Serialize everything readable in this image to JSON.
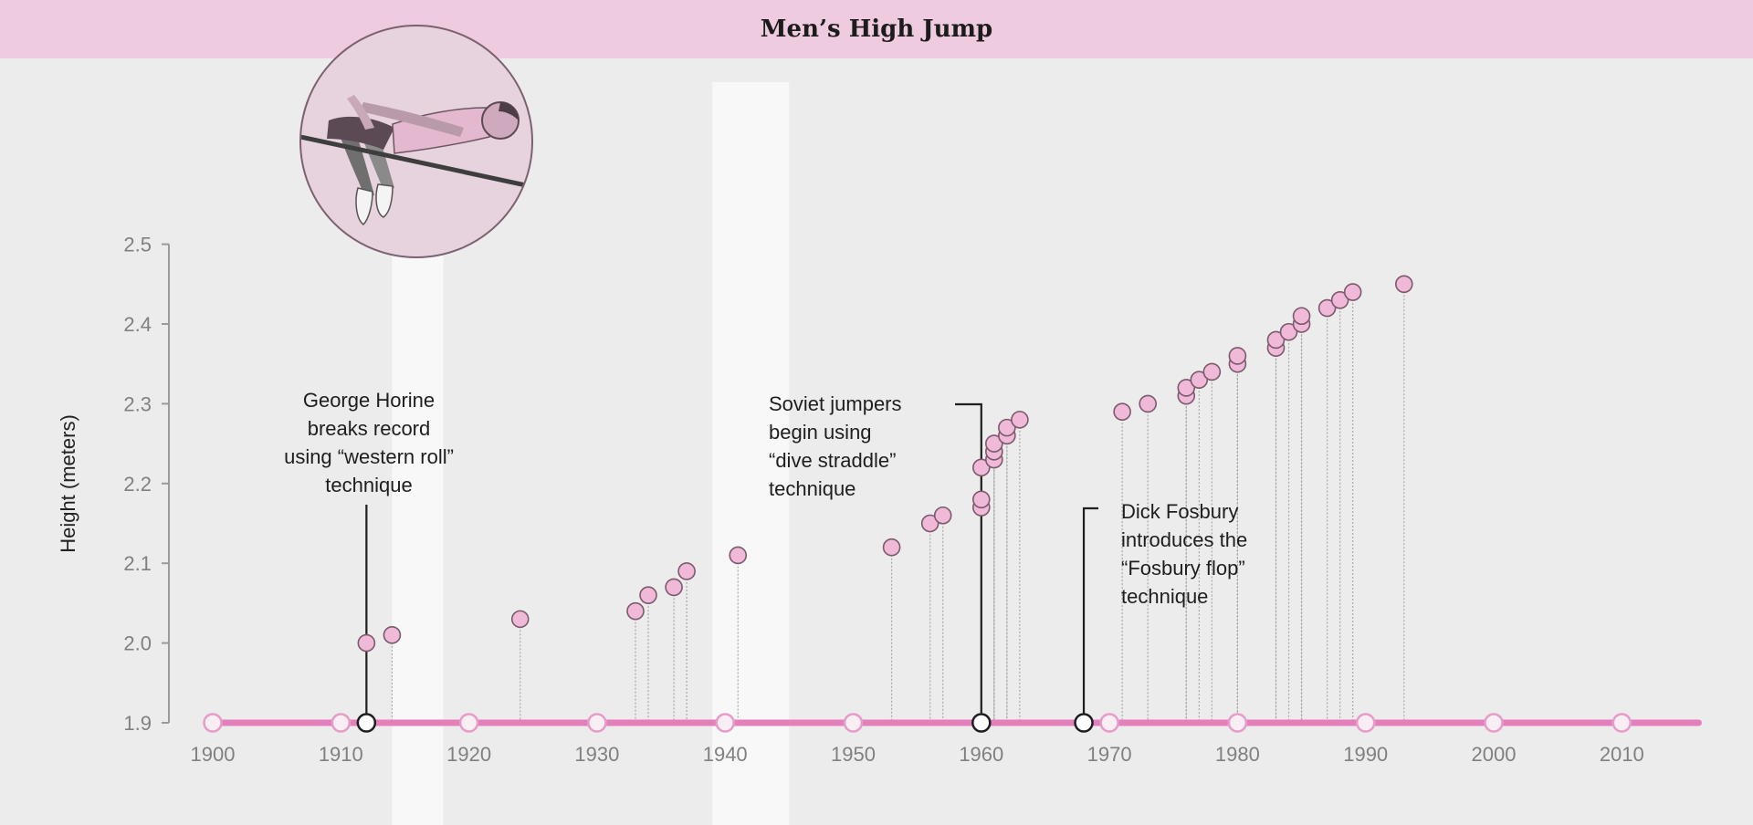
{
  "header": {
    "title": "Men’s High Jump"
  },
  "colors": {
    "background": "#ececec",
    "banner": "#efcbdf",
    "timeline": "#e47fbd",
    "point_fill": "#f0b9d8",
    "point_stroke": "#7a5a6c",
    "marker_fill": "#f9eef4",
    "marker_stroke": "#e79bc8",
    "highlight_band": "#f8f8f8",
    "annotation": "#1e1e1e"
  },
  "illustration": {
    "icon": "high-jumper-icon"
  },
  "chart_data": {
    "type": "scatter",
    "title": "",
    "xlabel": "",
    "ylabel": "Height (meters)",
    "xlim": [
      1900,
      2016
    ],
    "ylim": [
      1.9,
      2.5
    ],
    "x_ticks": [
      "1900",
      "1910",
      "1920",
      "1930",
      "1940",
      "1950",
      "1960",
      "1970",
      "1980",
      "1990",
      "2000",
      "2010"
    ],
    "y_ticks": [
      "1.9",
      "2.0",
      "2.1",
      "2.2",
      "2.3",
      "2.4",
      "2.5"
    ],
    "grid": false,
    "legend": "none",
    "highlight_bands": [
      [
        1914,
        1918
      ],
      [
        1939,
        1945
      ]
    ],
    "points": [
      {
        "x": 1912,
        "y": 2.0
      },
      {
        "x": 1914,
        "y": 2.01
      },
      {
        "x": 1924,
        "y": 2.03
      },
      {
        "x": 1933,
        "y": 2.04
      },
      {
        "x": 1934,
        "y": 2.06
      },
      {
        "x": 1936,
        "y": 2.07
      },
      {
        "x": 1937,
        "y": 2.09
      },
      {
        "x": 1941,
        "y": 2.11
      },
      {
        "x": 1953,
        "y": 2.12
      },
      {
        "x": 1956,
        "y": 2.15
      },
      {
        "x": 1957,
        "y": 2.16
      },
      {
        "x": 1960,
        "y": 2.17
      },
      {
        "x": 1960,
        "y": 2.18
      },
      {
        "x": 1960,
        "y": 2.22
      },
      {
        "x": 1961,
        "y": 2.23
      },
      {
        "x": 1961,
        "y": 2.24
      },
      {
        "x": 1961,
        "y": 2.25
      },
      {
        "x": 1962,
        "y": 2.26
      },
      {
        "x": 1962,
        "y": 2.27
      },
      {
        "x": 1963,
        "y": 2.28
      },
      {
        "x": 1971,
        "y": 2.29
      },
      {
        "x": 1973,
        "y": 2.3
      },
      {
        "x": 1976,
        "y": 2.31
      },
      {
        "x": 1976,
        "y": 2.32
      },
      {
        "x": 1977,
        "y": 2.33
      },
      {
        "x": 1978,
        "y": 2.34
      },
      {
        "x": 1980,
        "y": 2.35
      },
      {
        "x": 1980,
        "y": 2.36
      },
      {
        "x": 1983,
        "y": 2.37
      },
      {
        "x": 1983,
        "y": 2.38
      },
      {
        "x": 1984,
        "y": 2.39
      },
      {
        "x": 1985,
        "y": 2.4
      },
      {
        "x": 1985,
        "y": 2.41
      },
      {
        "x": 1987,
        "y": 2.42
      },
      {
        "x": 1988,
        "y": 2.43
      },
      {
        "x": 1989,
        "y": 2.44
      },
      {
        "x": 1993,
        "y": 2.45
      }
    ],
    "timeline_markers": [
      1900,
      1910,
      1920,
      1930,
      1940,
      1950,
      1960,
      1970,
      1980,
      1990,
      2000,
      2010
    ],
    "event_markers": [
      1912,
      1960,
      1968
    ],
    "annotations": [
      {
        "year": 1912,
        "lines": [
          "George Horine",
          "breaks record",
          "using “western roll”",
          "technique"
        ]
      },
      {
        "year": 1960,
        "lines": [
          "Soviet jumpers",
          "begin using",
          "“dive straddle”",
          "technique"
        ]
      },
      {
        "year": 1968,
        "lines": [
          "Dick Fosbury",
          "introduces the",
          "“Fosbury flop”",
          "technique"
        ]
      }
    ]
  }
}
